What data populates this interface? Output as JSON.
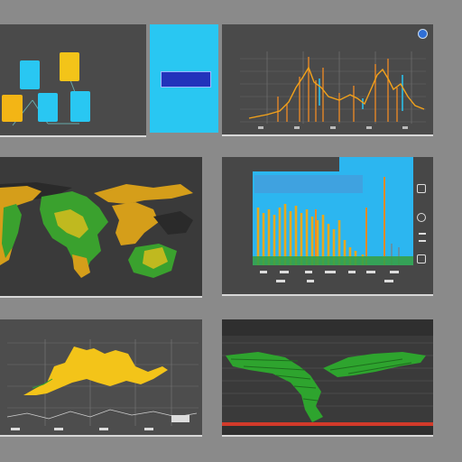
{
  "colors": {
    "page_bg": "#8a8a8a",
    "panel_bg": "#4a4a4a",
    "panel_dark": "#3b3b3b",
    "accent_cyan": "#29c7f2",
    "accent_yellow": "#f3c419",
    "accent_green": "#2ea42e",
    "accent_orange": "#f08a24",
    "badge_blue": "#2233bb"
  },
  "panels": {
    "diagram": {
      "title": ""
    },
    "cyan_tile": {
      "badge": ""
    },
    "line_chart": {
      "title": "",
      "icon": "circle-icon"
    },
    "world_map": {
      "title": "",
      "title_right": ""
    },
    "bar_chart": {
      "title": "",
      "side_icons": [
        "gear-icon",
        "chart-icon",
        "list-icon",
        "settings-icon"
      ]
    },
    "area_chart": {
      "title": "",
      "title_right": ""
    },
    "green_map": {
      "title": "",
      "title_right": ""
    }
  }
}
